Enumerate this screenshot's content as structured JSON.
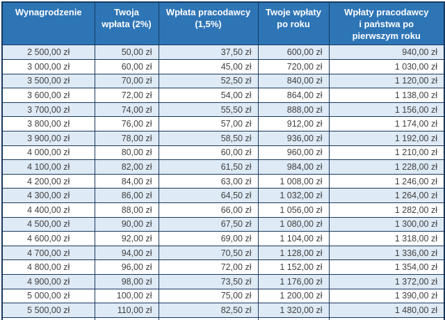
{
  "table": {
    "headers": [
      "Wynagrodzenie",
      "Twoja\nwpłata (2%)",
      "Wpłata pracodawcy\n(1,5%)",
      "Twoje wpłaty\npo roku",
      "Wpłaty pracodawcy\ni państwa po\npierwszym roku"
    ],
    "rows": [
      [
        "2 500,00 zł",
        "50,00 zł",
        "37,50 zł",
        "600,00 zł",
        "940,00 zł"
      ],
      [
        "3 000,00 zł",
        "60,00 zł",
        "45,00 zł",
        "720,00 zł",
        "1 030,00 zł"
      ],
      [
        "3 500,00 zł",
        "70,00 zł",
        "52,50 zł",
        "840,00 zł",
        "1 120,00 zł"
      ],
      [
        "3 600,00 zł",
        "72,00 zł",
        "54,00 zł",
        "864,00 zł",
        "1 138,00 zł"
      ],
      [
        "3 700,00 zł",
        "74,00 zł",
        "55,50 zł",
        "888,00 zł",
        "1 156,00 zł"
      ],
      [
        "3 800,00 zł",
        "76,00 zł",
        "57,00 zł",
        "912,00 zł",
        "1 174,00 zł"
      ],
      [
        "3 900,00 zł",
        "78,00 zł",
        "58,50 zł",
        "936,00 zł",
        "1 192,00 zł"
      ],
      [
        "4 000,00 zł",
        "80,00 zł",
        "60,00 zł",
        "960,00 zł",
        "1 210,00 zł"
      ],
      [
        "4 100,00 zł",
        "82,00 zł",
        "61,50 zł",
        "984,00 zł",
        "1 228,00 zł"
      ],
      [
        "4 200,00 zł",
        "84,00 zł",
        "63,00 zł",
        "1 008,00 zł",
        "1 246,00 zł"
      ],
      [
        "4 300,00 zł",
        "86,00 zł",
        "64,50 zł",
        "1 032,00 zł",
        "1 264,00 zł"
      ],
      [
        "4 400,00 zł",
        "88,00 zł",
        "66,00 zł",
        "1 056,00 zł",
        "1 282,00 zł"
      ],
      [
        "4 500,00 zł",
        "90,00 zł",
        "67,50 zł",
        "1 080,00 zł",
        "1 300,00 zł"
      ],
      [
        "4 600,00 zł",
        "92,00 zł",
        "69,00 zł",
        "1 104,00 zł",
        "1 318,00 zł"
      ],
      [
        "4 700,00 zł",
        "94,00 zł",
        "70,50 zł",
        "1 128,00 zł",
        "1 336,00 zł"
      ],
      [
        "4 800,00 zł",
        "96,00 zł",
        "72,00 zł",
        "1 152,00 zł",
        "1 354,00 zł"
      ],
      [
        "4 900,00 zł",
        "98,00 zł",
        "73,50 zł",
        "1 176,00 zł",
        "1 372,00 zł"
      ],
      [
        "5 000,00 zł",
        "100,00 zł",
        "75,00 zł",
        "1 200,00 zł",
        "1 390,00 zł"
      ],
      [
        "5 500,00 zł",
        "110,00 zł",
        "82,50 zł",
        "1 320,00 zł",
        "1 480,00 zł"
      ]
    ]
  },
  "chart_data": {
    "type": "table",
    "title": "",
    "columns": [
      "Wynagrodzenie",
      "Twoja wpłata (2%)",
      "Wpłata pracodawcy (1,5%)",
      "Twoje wpłaty po roku",
      "Wpłaty pracodawcy i państwa po pierwszym roku"
    ],
    "rows": [
      [
        "2 500,00 zł",
        "50,00 zł",
        "37,50 zł",
        "600,00 zł",
        "940,00 zł"
      ],
      [
        "3 000,00 zł",
        "60,00 zł",
        "45,00 zł",
        "720,00 zł",
        "1 030,00 zł"
      ],
      [
        "3 500,00 zł",
        "70,00 zł",
        "52,50 zł",
        "840,00 zł",
        "1 120,00 zł"
      ],
      [
        "3 600,00 zł",
        "72,00 zł",
        "54,00 zł",
        "864,00 zł",
        "1 138,00 zł"
      ],
      [
        "3 700,00 zł",
        "74,00 zł",
        "55,50 zł",
        "888,00 zł",
        "1 156,00 zł"
      ],
      [
        "3 800,00 zł",
        "76,00 zł",
        "57,00 zł",
        "912,00 zł",
        "1 174,00 zł"
      ],
      [
        "3 900,00 zł",
        "78,00 zł",
        "58,50 zł",
        "936,00 zł",
        "1 192,00 zł"
      ],
      [
        "4 000,00 zł",
        "80,00 zł",
        "60,00 zł",
        "960,00 zł",
        "1 210,00 zł"
      ],
      [
        "4 100,00 zł",
        "82,00 zł",
        "61,50 zł",
        "984,00 zł",
        "1 228,00 zł"
      ],
      [
        "4 200,00 zł",
        "84,00 zł",
        "63,00 zł",
        "1 008,00 zł",
        "1 246,00 zł"
      ],
      [
        "4 300,00 zł",
        "86,00 zł",
        "64,50 zł",
        "1 032,00 zł",
        "1 264,00 zł"
      ],
      [
        "4 400,00 zł",
        "88,00 zł",
        "66,00 zł",
        "1 056,00 zł",
        "1 282,00 zł"
      ],
      [
        "4 500,00 zł",
        "90,00 zł",
        "67,50 zł",
        "1 080,00 zł",
        "1 300,00 zł"
      ],
      [
        "4 600,00 zł",
        "92,00 zł",
        "69,00 zł",
        "1 104,00 zł",
        "1 318,00 zł"
      ],
      [
        "4 700,00 zł",
        "94,00 zł",
        "70,50 zł",
        "1 128,00 zł",
        "1 336,00 zł"
      ],
      [
        "4 800,00 zł",
        "96,00 zł",
        "72,00 zł",
        "1 152,00 zł",
        "1 354,00 zł"
      ],
      [
        "4 900,00 zł",
        "98,00 zł",
        "73,50 zł",
        "1 176,00 zł",
        "1 372,00 zł"
      ],
      [
        "5 000,00 zł",
        "100,00 zł",
        "75,00 zł",
        "1 200,00 zł",
        "1 390,00 zł"
      ],
      [
        "5 500,00 zł",
        "110,00 zł",
        "82,50 zł",
        "1 320,00 zł",
        "1 480,00 zł"
      ]
    ],
    "layout": {
      "header_position": "top",
      "row_banding": true,
      "first_column_align": "center",
      "value_columns_align": "right"
    }
  },
  "colors": {
    "header_bg": "#2E75B6",
    "header_text": "#FFFFFF",
    "row_alt_bg": "#DEEAF6",
    "row_bg": "#FFFFFF",
    "border": "#17375D",
    "cell_text": "#404040"
  }
}
